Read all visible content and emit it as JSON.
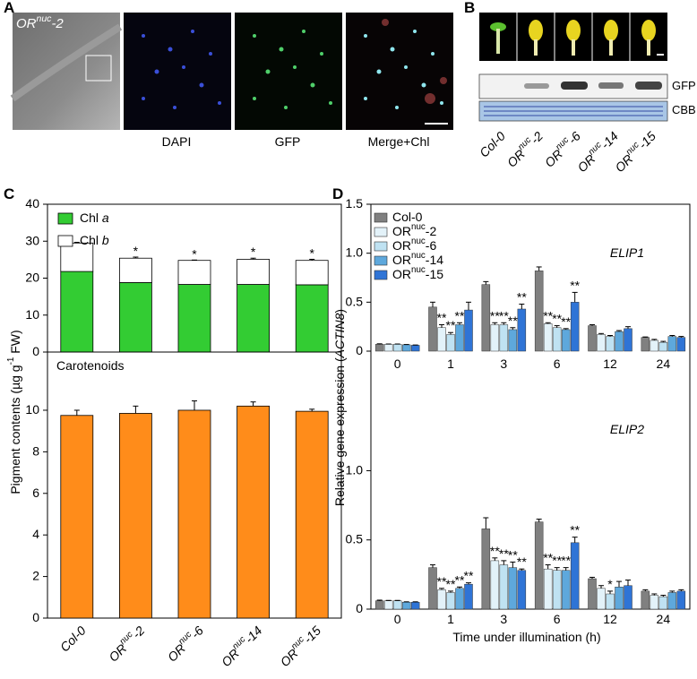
{
  "panel_labels": [
    "A",
    "B",
    "C",
    "D"
  ],
  "panel_a": {
    "sample": "ORnuc-2",
    "channels": [
      "DAPI",
      "GFP",
      "Merge+Chl"
    ]
  },
  "panel_b": {
    "blots": [
      "GFP",
      "CBB"
    ],
    "lanes": [
      "Col-0",
      "ORnuc-2",
      "ORnuc-6",
      "ORnuc-14",
      "ORnuc-15"
    ]
  },
  "chart_data": [
    {
      "type": "stacked_bar",
      "ylabel": "Pigment contents (µg g-1 FW)",
      "categories": [
        "Col-0",
        "ORnuc-2",
        "ORnuc-6",
        "ORnuc-14",
        "ORnuc-15"
      ],
      "panels": [
        {
          "ylim": [
            0,
            40
          ],
          "yticks": [
            0,
            10,
            20,
            30,
            40
          ],
          "legend": "upper left",
          "series": [
            {
              "name": "Chl a",
              "color": "#33cc33",
              "values": [
                21.8,
                18.8,
                18.3,
                18.3,
                18.2
              ],
              "errors": [
                0.4,
                0.5,
                0.4,
                0.5,
                1.0
              ],
              "labels": [
                null,
                "*",
                "*",
                "*",
                "*"
              ]
            },
            {
              "name": "Chl b",
              "color": "#ffffff",
              "values": [
                7.7,
                6.6,
                6.5,
                6.8,
                6.6
              ],
              "errors": [
                0.2,
                0.3,
                0.1,
                0.3,
                0.3
              ],
              "labels": [
                null,
                "*",
                "*",
                "*",
                "*"
              ]
            }
          ]
        },
        {
          "title": "Carotenoids",
          "ylim": [
            0,
            12.8
          ],
          "yticks": [
            0,
            2,
            4,
            6,
            8,
            10
          ],
          "series": [
            {
              "color": "#ff8c1a",
              "values": [
                9.75,
                9.85,
                10.0,
                10.2,
                9.95
              ],
              "errors": [
                0.25,
                0.35,
                0.45,
                0.2,
                0.1
              ]
            }
          ]
        }
      ]
    },
    {
      "type": "grouped_bar",
      "ylabel": "Relative gene expression (ACTIN8)",
      "xlabel": "Time under illumination (h)",
      "categories": [
        "0",
        "1",
        "3",
        "6",
        "12",
        "24"
      ],
      "legend": "upper left",
      "series": [
        {
          "name": "Col-0",
          "color": "#808080"
        },
        {
          "name": "ORnuc-2",
          "color": "#e3f2f9"
        },
        {
          "name": "ORnuc-6",
          "color": "#bfe2f2"
        },
        {
          "name": "ORnuc-14",
          "color": "#5ea8dc"
        },
        {
          "name": "ORnuc-15",
          "color": "#2f74d6"
        }
      ],
      "panels": [
        {
          "title": "ELIP1",
          "ylim": [
            0,
            1.5
          ],
          "yticks": [
            0,
            0.5,
            {
              "value": 1,
              "label": "1.0"
            },
            {
              "value": 1.5,
              "label": "1.5"
            }
          ],
          "values": [
            [
              0.07,
              0.45,
              0.68,
              0.82,
              0.26,
              0.14
            ],
            [
              0.07,
              0.24,
              0.27,
              0.28,
              0.17,
              0.11
            ],
            [
              0.07,
              0.17,
              0.27,
              0.24,
              0.15,
              0.09
            ],
            [
              0.065,
              0.27,
              0.22,
              0.22,
              0.2,
              0.15
            ],
            [
              0.06,
              0.42,
              0.43,
              0.5,
              0.23,
              0.14
            ]
          ],
          "errors": [
            [
              0.005,
              0.05,
              0.03,
              0.04,
              0.01,
              0.005
            ],
            [
              0.003,
              0.03,
              0.02,
              0.01,
              0.01,
              0.01
            ],
            [
              0.003,
              0.02,
              0.02,
              0.02,
              0.01,
              0.01
            ],
            [
              0.003,
              0.02,
              0.02,
              0.01,
              0.01,
              0.01
            ],
            [
              0.003,
              0.08,
              0.05,
              0.1,
              0.02,
              0.01
            ]
          ],
          "labels": [
            [
              null,
              null,
              null,
              null,
              null,
              null
            ],
            [
              null,
              "**",
              "**",
              "**",
              null,
              null
            ],
            [
              null,
              "**",
              "**",
              "**",
              null,
              null
            ],
            [
              null,
              "**",
              "**",
              "**",
              null,
              null
            ],
            [
              null,
              null,
              "**",
              "**",
              null,
              null
            ]
          ]
        },
        {
          "title": "ELIP2",
          "ylim": [
            0,
            1.65
          ],
          "yticks": [
            0,
            0.5,
            {
              "value": 1,
              "label": "1.0"
            }
          ],
          "values": [
            [
              0.06,
              0.3,
              0.58,
              0.63,
              0.22,
              0.13
            ],
            [
              0.06,
              0.14,
              0.35,
              0.29,
              0.15,
              0.1
            ],
            [
              0.06,
              0.12,
              0.32,
              0.28,
              0.11,
              0.09
            ],
            [
              0.05,
              0.15,
              0.3,
              0.28,
              0.16,
              0.12
            ],
            [
              0.05,
              0.18,
              0.28,
              0.48,
              0.17,
              0.13
            ]
          ],
          "errors": [
            [
              0.005,
              0.02,
              0.08,
              0.02,
              0.01,
              0.01
            ],
            [
              0.003,
              0.01,
              0.02,
              0.03,
              0.02,
              0.01
            ],
            [
              0.003,
              0.01,
              0.03,
              0.02,
              0.02,
              0.01
            ],
            [
              0.003,
              0.01,
              0.04,
              0.02,
              0.04,
              0.01
            ],
            [
              0.003,
              0.01,
              0.01,
              0.04,
              0.04,
              0.01
            ]
          ],
          "labels": [
            [
              null,
              null,
              null,
              null,
              null,
              null
            ],
            [
              null,
              "**",
              "**",
              "**",
              null,
              null
            ],
            [
              null,
              "**",
              "**",
              "**",
              "*",
              null
            ],
            [
              null,
              "**",
              "**",
              "**",
              null,
              null
            ],
            [
              null,
              "**",
              "**",
              "**",
              null,
              null
            ]
          ]
        }
      ]
    }
  ]
}
